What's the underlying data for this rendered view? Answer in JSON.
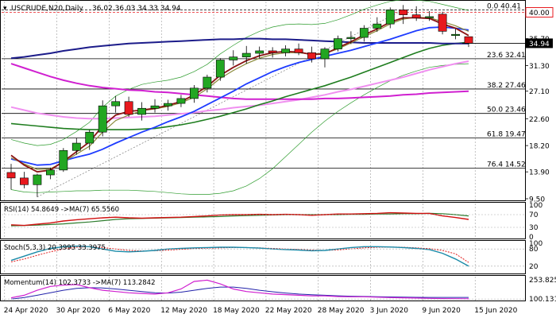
{
  "chart_data": {
    "type": "line",
    "title": "USCRUDE,N20,Daily",
    "ohlc_header": "36.02 36.03 34.33 34.94",
    "price_range": [
      9.5,
      41.5
    ],
    "y_ticks": [
      "40.00",
      "35.70",
      "34.94",
      "31.30",
      "27.10",
      "22.60",
      "18.20",
      "13.90",
      "9.50"
    ],
    "y_tick_values": [
      40.0,
      35.7,
      34.94,
      31.3,
      27.1,
      22.6,
      18.2,
      13.9,
      9.5
    ],
    "current_price": "34.94",
    "x_labels": [
      "24 Apr 2020",
      "30 Apr 2020",
      "6 May 2020",
      "12 May 2020",
      "18 May 2020",
      "22 May 2020",
      "28 May 2020",
      "3 Jun 2020",
      "9 Jun 2020",
      "15 Jun 2020"
    ],
    "x_label_index": [
      0,
      4,
      8,
      12,
      16,
      20,
      24,
      28,
      32,
      36
    ],
    "candles": [
      [
        13.8,
        15.2,
        11.0,
        12.9
      ],
      [
        12.9,
        13.9,
        11.2,
        11.8
      ],
      [
        11.8,
        13.6,
        9.8,
        13.4
      ],
      [
        13.4,
        14.6,
        12.7,
        14.2
      ],
      [
        14.2,
        17.8,
        13.9,
        17.4
      ],
      [
        17.4,
        19.4,
        16.7,
        18.6
      ],
      [
        18.6,
        20.8,
        17.5,
        20.4
      ],
      [
        20.4,
        25.6,
        19.7,
        24.7
      ],
      [
        24.7,
        26.3,
        23.6,
        25.4
      ],
      [
        25.4,
        26.2,
        22.9,
        23.3
      ],
      [
        23.3,
        25.3,
        22.3,
        24.3
      ],
      [
        24.3,
        25.8,
        23.6,
        24.7
      ],
      [
        24.7,
        25.7,
        23.9,
        25.1
      ],
      [
        25.1,
        26.5,
        24.5,
        25.9
      ],
      [
        25.9,
        28.1,
        25.2,
        27.6
      ],
      [
        27.6,
        29.8,
        26.9,
        29.4
      ],
      [
        29.4,
        32.5,
        28.8,
        32.2
      ],
      [
        32.2,
        33.8,
        31.3,
        32.7
      ],
      [
        32.7,
        34.5,
        31.6,
        33.3
      ],
      [
        33.3,
        34.4,
        32.5,
        33.7
      ],
      [
        33.7,
        34.3,
        32.6,
        33.4
      ],
      [
        33.4,
        34.6,
        32.8,
        34.0
      ],
      [
        34.0,
        34.9,
        33.0,
        33.4
      ],
      [
        33.4,
        34.4,
        31.8,
        32.4
      ],
      [
        32.4,
        34.3,
        31.0,
        34.0
      ],
      [
        34.0,
        36.2,
        33.6,
        35.7
      ],
      [
        35.7,
        36.9,
        34.8,
        35.9
      ],
      [
        35.9,
        37.9,
        35.2,
        37.4
      ],
      [
        37.4,
        39.2,
        36.8,
        38.1
      ],
      [
        38.1,
        40.8,
        37.4,
        40.4
      ],
      [
        40.4,
        41.2,
        38.1,
        39.6
      ],
      [
        39.6,
        41.0,
        38.6,
        39.1
      ],
      [
        39.1,
        40.2,
        38.6,
        39.3
      ],
      [
        39.7,
        40.1,
        36.4,
        36.9
      ],
      [
        36.2,
        37.3,
        35.6,
        36.4
      ],
      [
        36.02,
        36.03,
        34.33,
        34.94
      ]
    ],
    "fib_levels": [
      {
        "label": "0.0 40.41",
        "value": 40.41
      },
      {
        "label": "23.6 32.41",
        "value": 32.41
      },
      {
        "label": "38.2 27.46",
        "value": 27.46
      },
      {
        "label": "50.0 23.46",
        "value": 23.46
      },
      {
        "label": "61.8 19.47",
        "value": 19.47
      },
      {
        "label": "76.4 14.52",
        "value": 14.52
      }
    ],
    "sma_dark_blue": [
      32.5,
      32.7,
      33.0,
      33.3,
      33.7,
      34.0,
      34.3,
      34.5,
      34.7,
      34.9,
      35.0,
      35.1,
      35.2,
      35.3,
      35.4,
      35.5,
      35.6,
      35.6,
      35.7,
      35.7,
      35.6,
      35.6,
      35.5,
      35.4,
      35.3,
      35.2,
      35.1,
      35.0,
      35.0,
      35.0,
      35.0,
      35.0,
      35.0,
      34.9,
      34.9,
      34.9
    ],
    "sma_magenta": [
      31.6,
      30.9,
      30.2,
      29.5,
      28.9,
      28.4,
      28.0,
      27.7,
      27.5,
      27.3,
      27.2,
      27.0,
      26.9,
      26.7,
      26.5,
      26.3,
      26.1,
      25.9,
      25.8,
      25.8,
      25.8,
      25.8,
      25.8,
      25.8,
      25.9,
      25.9,
      26.0,
      26.1,
      26.2,
      26.3,
      26.5,
      26.6,
      26.8,
      26.9,
      27.0,
      27.1
    ],
    "ma_dark_green": [
      21.8,
      21.6,
      21.4,
      21.2,
      21.0,
      20.9,
      20.8,
      20.8,
      20.8,
      20.8,
      20.9,
      21.0,
      21.3,
      21.6,
      22.0,
      22.5,
      23.0,
      23.6,
      24.2,
      24.9,
      25.5,
      26.2,
      26.8,
      27.4,
      28.0,
      28.7,
      29.4,
      30.2,
      31.0,
      31.8,
      32.6,
      33.4,
      34.1,
      34.6,
      34.9,
      35.1
    ],
    "ma_blue": [
      16.0,
      15.5,
      15.0,
      15.1,
      15.7,
      16.3,
      16.8,
      17.6,
      18.6,
      19.5,
      20.4,
      21.2,
      22.1,
      22.9,
      23.8,
      24.9,
      26.0,
      27.1,
      28.3,
      29.3,
      30.3,
      31.1,
      31.8,
      32.3,
      32.8,
      33.3,
      33.8,
      34.4,
      35.0,
      35.6,
      36.3,
      37.0,
      37.5,
      37.6,
      37.4,
      37.1
    ],
    "ma_darkred": [
      16.6,
      15.0,
      13.9,
      14.2,
      15.6,
      17.2,
      18.8,
      21.4,
      23.2,
      23.8,
      24.0,
      24.3,
      24.8,
      25.4,
      26.5,
      27.9,
      29.7,
      31.0,
      32.1,
      32.9,
      33.4,
      33.6,
      33.5,
      33.1,
      33.2,
      34.2,
      35.2,
      36.3,
      37.3,
      38.4,
      39.1,
      39.1,
      39.0,
      38.1,
      37.4,
      36.2
    ],
    "ma_olive": [
      16.2,
      15.2,
      14.3,
      14.4,
      15.5,
      16.8,
      18.1,
      20.4,
      22.3,
      23.2,
      23.9,
      24.2,
      24.6,
      25.2,
      26.1,
      27.5,
      29.2,
      30.5,
      31.6,
      32.5,
      33.1,
      33.4,
      33.4,
      33.2,
      33.3,
      34.0,
      35.0,
      36.0,
      37.0,
      38.1,
      38.9,
      39.2,
      39.1,
      38.5,
      37.8,
      36.9
    ],
    "bb_upper": [
      19.2,
      18.6,
      18.2,
      18.4,
      19.2,
      20.5,
      22.0,
      24.5,
      26.3,
      27.4,
      28.2,
      28.6,
      28.9,
      29.4,
      30.3,
      31.5,
      33.2,
      34.6,
      35.9,
      36.9,
      37.6,
      38.0,
      38.1,
      38.0,
      38.2,
      38.8,
      39.6,
      40.5,
      41.2,
      41.8,
      42.1,
      42.0,
      41.8,
      41.3,
      40.8,
      40.3
    ],
    "bb_lower": [
      11.0,
      10.6,
      10.5,
      10.6,
      10.7,
      10.8,
      10.8,
      10.9,
      10.9,
      10.9,
      10.8,
      10.7,
      10.5,
      10.3,
      10.2,
      10.2,
      10.4,
      10.8,
      11.6,
      12.8,
      14.4,
      16.4,
      18.4,
      20.4,
      22.2,
      23.8,
      25.2,
      26.5,
      27.7,
      28.8,
      29.7,
      30.4,
      31.0,
      31.3,
      31.5,
      31.6
    ],
    "bb_mid_pink": [
      24.5,
      24.0,
      23.5,
      23.2,
      22.9,
      22.7,
      22.6,
      22.6,
      22.7,
      22.8,
      22.9,
      23.0,
      23.2,
      23.4,
      23.6,
      23.9,
      24.1,
      24.4,
      24.6,
      24.8,
      25.1,
      25.4,
      25.7,
      26.1,
      26.5,
      27.0,
      27.4,
      27.9,
      28.4,
      28.9,
      29.4,
      30.0,
      30.6,
      31.1,
      31.6,
      32.0
    ],
    "rsi": {
      "label": "RSI(14) 54.8649  ->MA(7) 65.5560",
      "ticks": [
        70,
        30,
        0,
        100
      ],
      "rsi_values": [
        38,
        36,
        40,
        44,
        50,
        54,
        57,
        60,
        62,
        60,
        59,
        60,
        61,
        62,
        64,
        66,
        69,
        70,
        70,
        71,
        70,
        71,
        70,
        68,
        70,
        72,
        72,
        73,
        74,
        76,
        75,
        74,
        74,
        66,
        61,
        55
      ],
      "ma_values": [
        35,
        36,
        37,
        39,
        41,
        44,
        47,
        51,
        55,
        57,
        58,
        59,
        60,
        61,
        62,
        63,
        64,
        66,
        67,
        68,
        69,
        70,
        70,
        70,
        70,
        70,
        71,
        71,
        72,
        72,
        73,
        73,
        74,
        73,
        70,
        66
      ]
    },
    "stoch": {
      "label": "Stoch(5,3,3) 20.3995 33.3975",
      "ticks": [
        100,
        80,
        20
      ],
      "k_values": [
        40,
        55,
        70,
        82,
        88,
        90,
        88,
        80,
        72,
        70,
        72,
        75,
        80,
        82,
        84,
        85,
        86,
        86,
        85,
        83,
        80,
        78,
        76,
        74,
        75,
        80,
        85,
        88,
        88,
        87,
        85,
        82,
        78,
        65,
        45,
        20
      ],
      "d_values": [
        35,
        45,
        58,
        70,
        80,
        86,
        88,
        85,
        80,
        75,
        73,
        74,
        76,
        79,
        81,
        83,
        84,
        85,
        85,
        84,
        82,
        80,
        78,
        76,
        75,
        77,
        80,
        84,
        86,
        87,
        86,
        84,
        81,
        75,
        63,
        33
      ]
    },
    "momentum": {
      "label": "Momentum(14) 102.3733  ->MA(7) 113.2842",
      "ticks": [
        "253.8259",
        "100.1317"
      ],
      "mom_values": [
        110,
        130,
        170,
        200,
        210,
        215,
        190,
        170,
        160,
        150,
        145,
        140,
        150,
        180,
        240,
        250,
        220,
        180,
        160,
        150,
        140,
        135,
        130,
        125,
        125,
        120,
        118,
        118,
        115,
        112,
        110,
        108,
        106,
        104,
        103,
        102
      ],
      "ma_values": [
        100,
        112,
        130,
        150,
        170,
        185,
        190,
        188,
        180,
        170,
        160,
        150,
        148,
        155,
        170,
        185,
        195,
        195,
        185,
        170,
        158,
        148,
        140,
        134,
        130,
        126,
        123,
        121,
        119,
        117,
        115,
        114,
        113,
        113,
        113,
        113
      ]
    }
  }
}
